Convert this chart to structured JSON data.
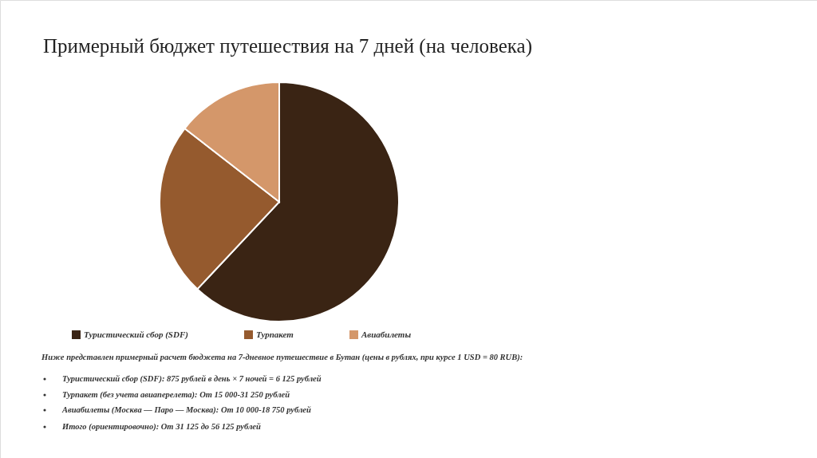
{
  "chart_data": {
    "type": "pie",
    "title": "Примерный бюджет путешествия на 7 дней (на человека)",
    "categories": [
      "Туристический сбор (SDF)",
      "Турпакет",
      "Авиабилеты"
    ],
    "values": [
      62,
      23.5,
      14.5
    ],
    "colors": [
      "#3a2414",
      "#955a2e",
      "#d4976a"
    ],
    "legend": "bottom",
    "annotations": [
      "Ниже представлен примерный расчет бюджета на 7-дневное путешествие в Бутан (цены в рублях, при курсе 1 USD = 80 RUB):",
      "Туристический сбор (SDF): 875 рублей в день × 7 ночей = 6 125 рублей",
      "Турпакет (без учета авиаперелета): От 15 000-31 250 рублей",
      "Авиабилеты (Москва — Паро — Москва): От 10 000-18 750 рублей",
      "Итого (ориентировочно): От 31 125 до 56 125 рублей"
    ]
  }
}
